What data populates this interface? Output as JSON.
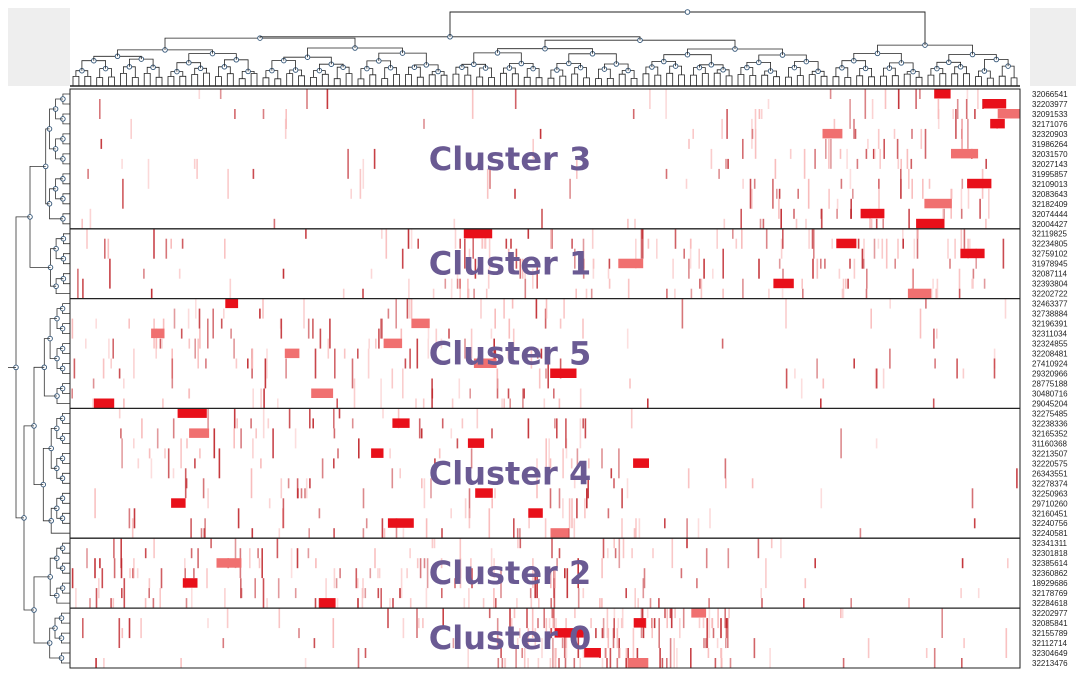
{
  "chart_data": {
    "type": "heatmap",
    "title": "",
    "xlabel": "",
    "ylabel": "",
    "grid": false,
    "legend": "none",
    "colors": {
      "strong": "#e8101a",
      "medium": "#f07070",
      "weak": "#f8b8b8",
      "tick": "#c0282e",
      "cluster_label": "#6a5a93",
      "side_panel": "#eeeeee"
    },
    "clusters": [
      {
        "name": "Cluster 3",
        "rows": [
          "32066541",
          "32203977",
          "32091533",
          "32171076",
          "32320903",
          "31986264",
          "32031570",
          "32027143",
          "31995857",
          "32109013",
          "32083643",
          "32182409",
          "32074444",
          "32004427"
        ]
      },
      {
        "name": "Cluster 1",
        "rows": [
          "32119825",
          "32234805",
          "32759102",
          "31978945",
          "32087114",
          "32393804",
          "32202722"
        ]
      },
      {
        "name": "Cluster 5",
        "rows": [
          "32463377",
          "32738884",
          "32196391",
          "32311034",
          "32324855",
          "32208481",
          "27410924",
          "29320966",
          "28775188",
          "30480716",
          "29045204"
        ]
      },
      {
        "name": "Cluster 4",
        "rows": [
          "32275485",
          "32238336",
          "32165352",
          "31160368",
          "32213507",
          "32220575",
          "26343551",
          "32278374",
          "32250963",
          "29710260",
          "32160451",
          "32240756",
          "32240581"
        ]
      },
      {
        "name": "Cluster 2",
        "rows": [
          "32341311",
          "32301818",
          "32385614",
          "32360862",
          "18929686",
          "32178769",
          "32284618"
        ]
      },
      {
        "name": "Cluster 0",
        "rows": [
          "32202977",
          "32085841",
          "32155789",
          "32112714",
          "32304649",
          "32213476"
        ]
      }
    ]
  }
}
